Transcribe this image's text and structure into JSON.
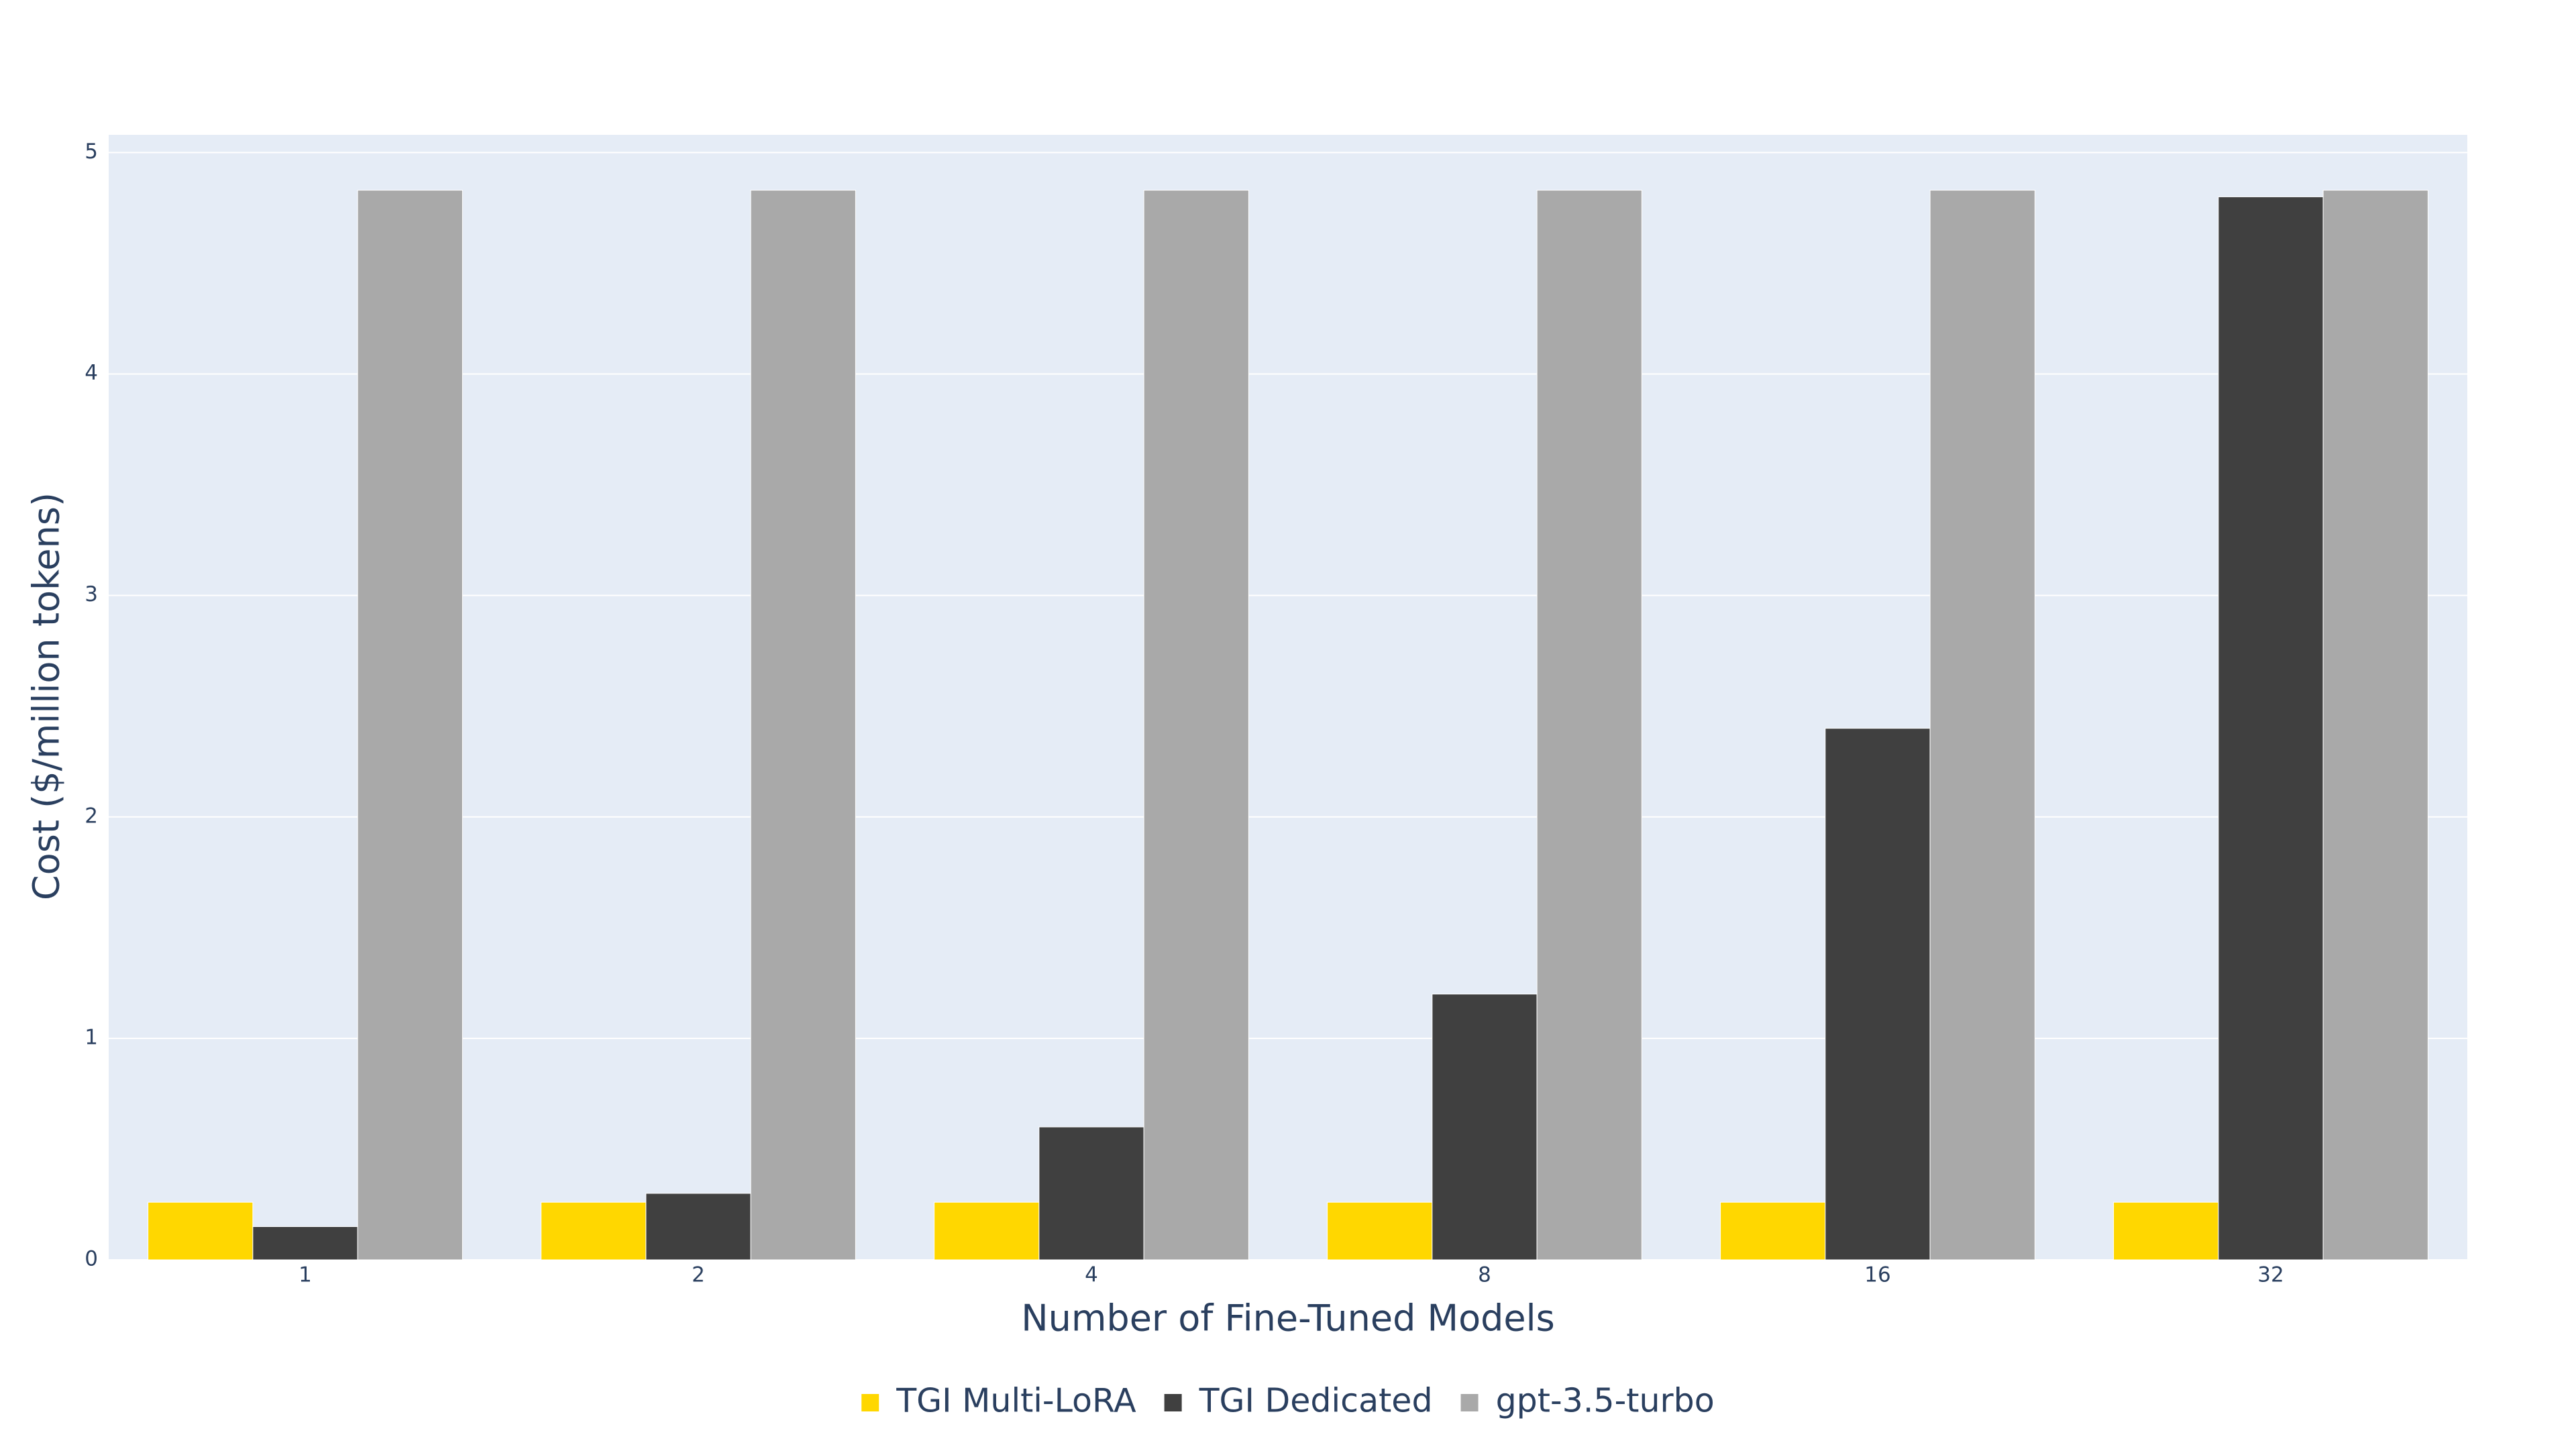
{
  "chart_data": {
    "type": "bar",
    "x_label": "Number of Fine-Tuned Models",
    "y_label": "Cost ($/million tokens)",
    "categories": [
      "1",
      "2",
      "4",
      "8",
      "16",
      "32"
    ],
    "series": [
      {
        "name": "TGI Multi-LoRA",
        "color": "#FFD700",
        "values": [
          0.26,
          0.26,
          0.26,
          0.26,
          0.26,
          0.26
        ]
      },
      {
        "name": "TGI Dedicated",
        "color": "#404040",
        "values": [
          0.15,
          0.3,
          0.6,
          1.2,
          2.4,
          4.8
        ]
      },
      {
        "name": "gpt-3.5-turbo",
        "color": "#A9A9A9",
        "values": [
          4.83,
          4.83,
          4.83,
          4.83,
          4.83,
          4.83
        ]
      }
    ],
    "ylim": [
      0,
      5.08
    ],
    "yticks": [
      0,
      1,
      2,
      3,
      4,
      5
    ],
    "grid": true,
    "legend": "bottom"
  }
}
